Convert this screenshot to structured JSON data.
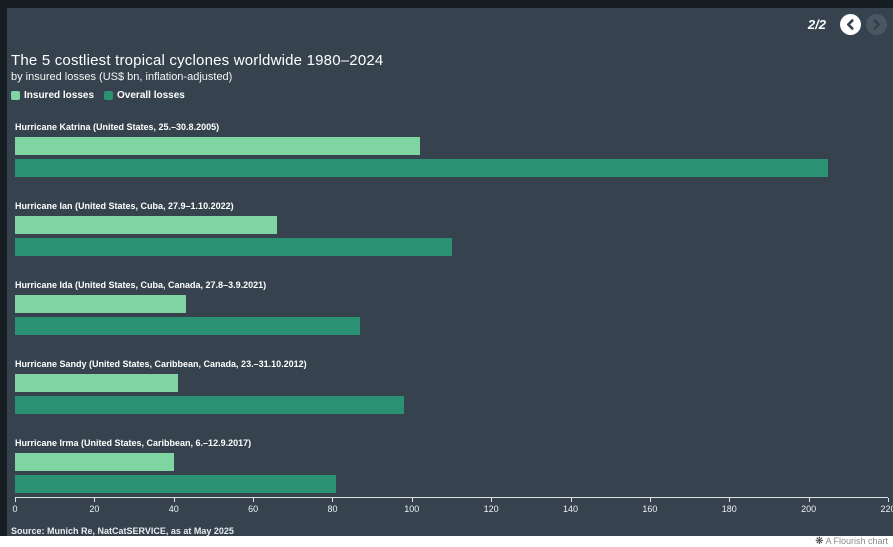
{
  "nav": {
    "page_indicator": "2/2",
    "prev_label": "previous slide",
    "next_label": "next slide"
  },
  "header": {
    "title": "The 5 costliest tropical cyclones worldwide 1980–2024",
    "subtitle": "by insured losses (US$ bn, inflation-adjusted)"
  },
  "legend": [
    {
      "label": "Insured losses",
      "color": "#7fd4a2"
    },
    {
      "label": "Overall losses",
      "color": "#2a9173"
    }
  ],
  "chart_data": {
    "type": "bar",
    "orientation": "horizontal",
    "title": "The 5 costliest tropical cyclones worldwide 1980–2024",
    "subtitle": "by insured losses (US$ bn, inflation-adjusted)",
    "categories": [
      "Hurricane Katrina (United States, 25.–30.8.2005)",
      "Hurricane Ian (United States, Cuba, 27.9–1.10.2022)",
      "Hurricane Ida (United States, Cuba, Canada, 27.8–3.9.2021)",
      "Hurricane Sandy (United States, Caribbean, Canada, 23.–31.10.2012)",
      "Hurricane Irma (United States, Caribbean, 6.–12.9.2017)"
    ],
    "series": [
      {
        "name": "Insured losses",
        "color": "#7fd4a2",
        "values": [
          102,
          66,
          43,
          41,
          40
        ]
      },
      {
        "name": "Overall losses",
        "color": "#2a9173",
        "values": [
          205,
          110,
          87,
          98,
          81
        ]
      }
    ],
    "xlim": [
      0,
      220
    ],
    "x_ticks": [
      0,
      20,
      40,
      60,
      80,
      100,
      120,
      140,
      160,
      180,
      200,
      220
    ],
    "grid": false,
    "legend_position": "top-left"
  },
  "footer": {
    "source": "Source: Munich Re, NatCatSERVICE, as at May 2025",
    "attribution": "A Flourish chart",
    "attribution_icon": "flourish-asterisk"
  },
  "colors": {
    "background": "#36434e",
    "frame": "#161d23",
    "insured": "#7fd4a2",
    "overall": "#2a9173"
  }
}
